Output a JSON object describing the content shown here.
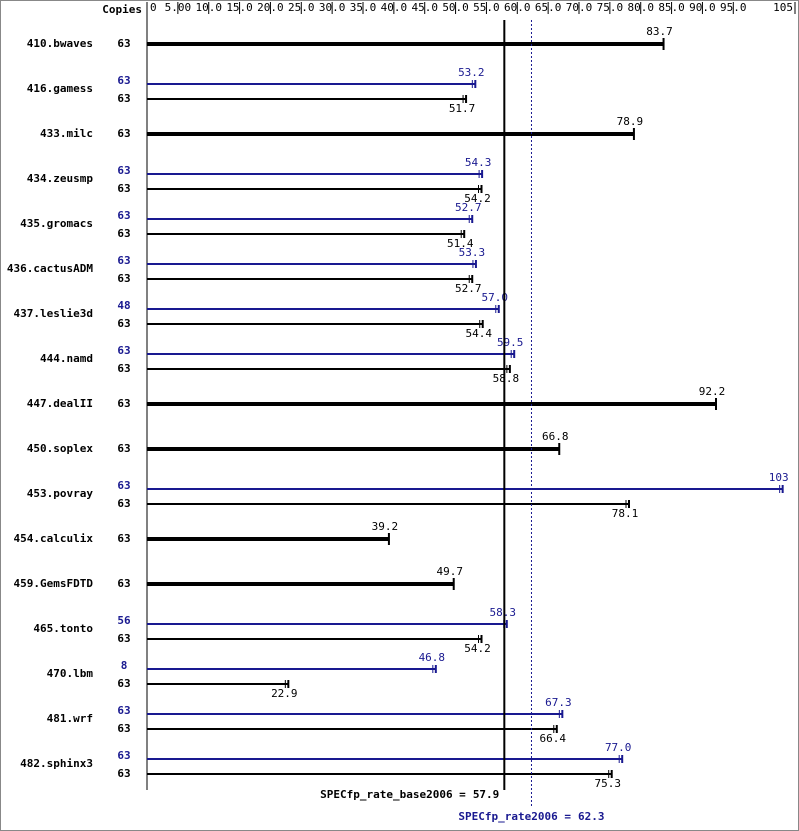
{
  "chart_data": {
    "type": "bar",
    "copies_label": "Copies",
    "categories": [
      "410.bwaves",
      "416.gamess",
      "433.milc",
      "434.zeusmp",
      "435.gromacs",
      "436.cactusADM",
      "437.leslie3d",
      "444.namd",
      "447.dealII",
      "450.soplex",
      "453.povray",
      "454.calculix",
      "459.GemsFDTD",
      "465.tonto",
      "470.lbm",
      "481.wrf",
      "482.sphinx3"
    ],
    "series": [
      {
        "color": "#191990",
        "copies": [
          null,
          63,
          null,
          63,
          63,
          63,
          48,
          63,
          null,
          null,
          63,
          null,
          null,
          56,
          8,
          63,
          63
        ],
        "values": [
          null,
          53.2,
          null,
          54.3,
          52.7,
          53.3,
          57,
          59.5,
          null,
          null,
          103,
          null,
          null,
          58.3,
          46.8,
          67.3,
          77
        ],
        "value_labels": [
          null,
          "53.2",
          null,
          "54.3",
          "52.7",
          "53.3",
          "57.0",
          "59.5",
          null,
          null,
          "103",
          null,
          null,
          "58.3",
          "46.8",
          "67.3",
          "77.0"
        ]
      },
      {
        "color": "#000000",
        "copies": [
          63,
          63,
          63,
          63,
          63,
          63,
          63,
          63,
          63,
          63,
          63,
          63,
          63,
          63,
          63,
          63,
          63
        ],
        "values": [
          83.7,
          51.7,
          78.9,
          54.2,
          51.4,
          52.7,
          54.4,
          58.8,
          92.2,
          66.8,
          78.1,
          39.2,
          49.7,
          54.2,
          22.9,
          66.4,
          75.3
        ]
      }
    ],
    "xlim": [
      0,
      105
    ],
    "xticks": [
      0,
      {
        "value": 5,
        "label": "5.00"
      },
      {
        "value": 10,
        "label": "10.0"
      },
      {
        "value": 15,
        "label": "15.0"
      },
      {
        "value": 20,
        "label": "20.0"
      },
      {
        "value": 25,
        "label": "25.0"
      },
      {
        "value": 30,
        "label": "30.0"
      },
      {
        "value": 35,
        "label": "35.0"
      },
      {
        "value": 40,
        "label": "40.0"
      },
      {
        "value": 45,
        "label": "45.0"
      },
      {
        "value": 50,
        "label": "50.0"
      },
      {
        "value": 55,
        "label": "55.0"
      },
      {
        "value": 60,
        "label": "60.0"
      },
      {
        "value": 65,
        "label": "65.0"
      },
      {
        "value": 70,
        "label": "70.0"
      },
      {
        "value": 75,
        "label": "75.0"
      },
      {
        "value": 80,
        "label": "80.0"
      },
      {
        "value": 85,
        "label": "85.0"
      },
      {
        "value": 90,
        "label": "90.0"
      },
      {
        "value": 95,
        "label": "95.0"
      },
      105
    ],
    "summary_base": {
      "label": "SPECfp_rate_base2006 =",
      "value": 57.9,
      "color": "#000000"
    },
    "summary_peak": {
      "label": "SPECfp_rate2006 =",
      "value": 62.3,
      "color": "#191990"
    }
  }
}
